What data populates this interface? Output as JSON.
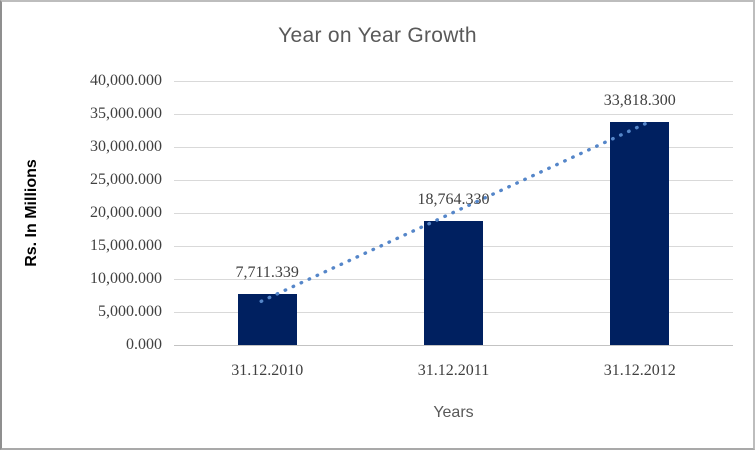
{
  "chart": {
    "colors": {
      "bar": "#002060",
      "trendline": "#5586c9",
      "gridline": "#d9d9d9",
      "axis_line": "#c3c3c3",
      "tick_text": "#404040",
      "title_text": "#595959"
    }
  },
  "chart_data": {
    "type": "bar",
    "title": "Year on Year Growth",
    "xlabel": "Years",
    "ylabel": "Rs. In Millions",
    "categories": [
      "31.12.2010",
      "31.12.2011",
      "31.12.2012"
    ],
    "values": [
      7711.339,
      18764.33,
      33818.3
    ],
    "data_labels": [
      "7,711.339",
      "18,764.330",
      "33,818.300"
    ],
    "ylim": [
      0,
      40000
    ],
    "y_tick_step": 5000,
    "y_tick_labels": [
      "0.000",
      "5,000.000",
      "10,000.000",
      "15,000.000",
      "20,000.000",
      "25,000.000",
      "30,000.000",
      "35,000.000",
      "40,000.000"
    ],
    "grid": true,
    "legend": false,
    "trendline": "linear-dotted"
  }
}
